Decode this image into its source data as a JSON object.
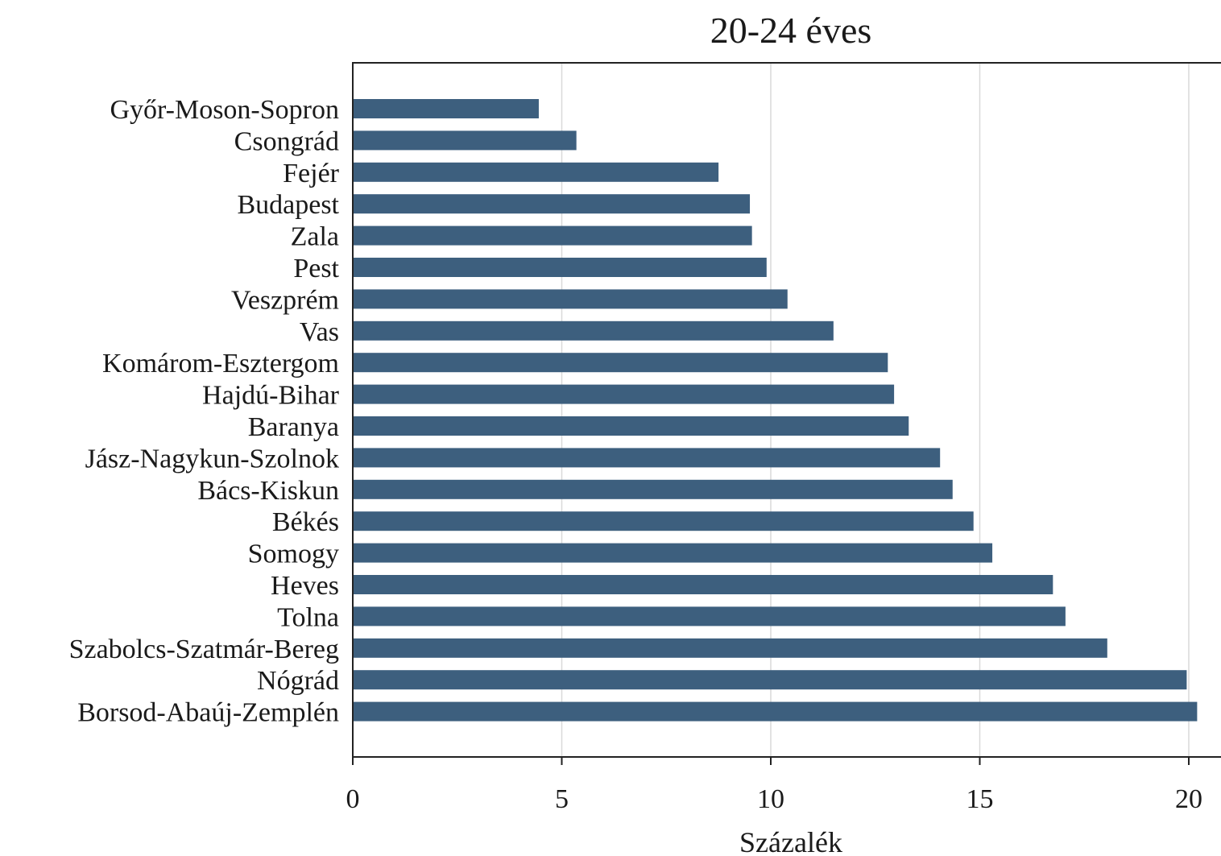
{
  "chart_data": {
    "type": "bar",
    "orientation": "horizontal",
    "title": "20-24 éves",
    "xlabel": "Százalék",
    "ylabel": "",
    "xlim": [
      0,
      20.8
    ],
    "xticks": [
      0,
      5,
      10,
      15,
      20
    ],
    "grid": "vertical",
    "bar_color": "#3d5f7e",
    "categories": [
      "Győr-Moson-Sopron",
      "Csongrád",
      "Fejér",
      "Budapest",
      "Zala",
      "Pest",
      "Veszprém",
      "Vas",
      "Komárom-Esztergom",
      "Hajdú-Bihar",
      "Baranya",
      "Jász-Nagykun-Szolnok",
      "Bács-Kiskun",
      "Békés",
      "Somogy",
      "Heves",
      "Tolna",
      "Szabolcs-Szatmár-Bereg",
      "Nógrád",
      "Borsod-Abaúj-Zemplén"
    ],
    "values": [
      4.45,
      5.35,
      8.75,
      9.5,
      9.55,
      9.9,
      10.4,
      11.5,
      12.8,
      12.95,
      13.3,
      14.05,
      14.35,
      14.85,
      15.3,
      16.75,
      17.05,
      18.05,
      19.95,
      20.2
    ]
  }
}
